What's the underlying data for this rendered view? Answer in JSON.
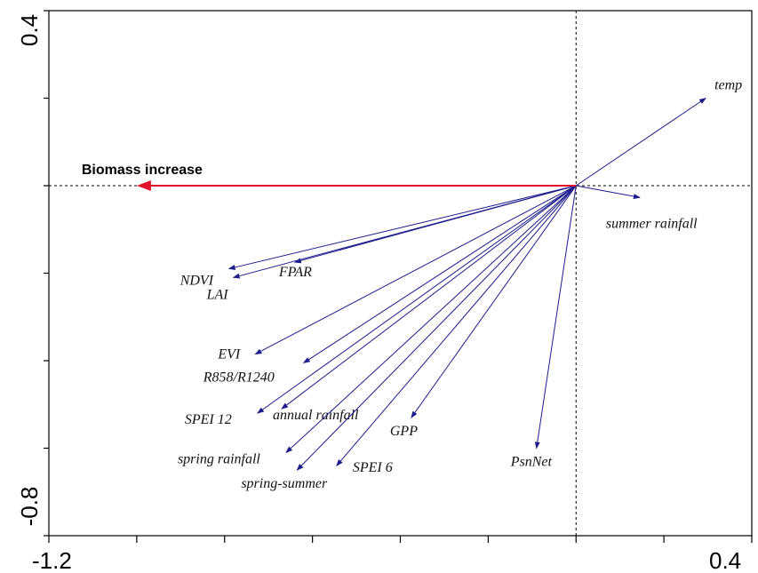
{
  "chart_data": {
    "type": "scatter",
    "subtype": "biplot-vectors",
    "xlim": [
      -1.2,
      0.4
    ],
    "ylim": [
      -0.8,
      0.4
    ],
    "x_tick_labels": [
      "-1.2",
      "0.4"
    ],
    "y_tick_labels": [
      "0.4",
      "-0.8"
    ],
    "grid": false,
    "reference_lines": {
      "x": 0,
      "y": 0,
      "style": "dashed"
    },
    "vector_color": "#1c1c8c",
    "highlight_color": "#e0102a",
    "highlight_vector": {
      "label": "Biomass increase",
      "x": -1.0,
      "y": 0.0
    },
    "vectors": [
      {
        "label": "temp",
        "x": 0.295,
        "y": 0.2
      },
      {
        "label": "summer rainfall",
        "x": 0.145,
        "y": -0.027
      },
      {
        "label": "NDVI",
        "x": -0.79,
        "y": -0.19
      },
      {
        "label": "FPAR",
        "x": -0.64,
        "y": -0.175
      },
      {
        "label": "LAI",
        "x": -0.78,
        "y": -0.21
      },
      {
        "label": "EVI",
        "x": -0.73,
        "y": -0.385
      },
      {
        "label": "R858/R1240",
        "x": -0.62,
        "y": -0.405
      },
      {
        "label": "SPEI 12",
        "x": -0.725,
        "y": -0.52
      },
      {
        "label": "annual rainfall",
        "x": -0.67,
        "y": -0.51
      },
      {
        "label": "GPP",
        "x": -0.375,
        "y": -0.53
      },
      {
        "label": "spring rainfall",
        "x": -0.66,
        "y": -0.61
      },
      {
        "label": "spring-summer",
        "x": -0.635,
        "y": -0.65
      },
      {
        "label": "SPEI 6",
        "x": -0.545,
        "y": -0.64
      },
      {
        "label": "PsnNet",
        "x": -0.09,
        "y": -0.6
      }
    ]
  }
}
